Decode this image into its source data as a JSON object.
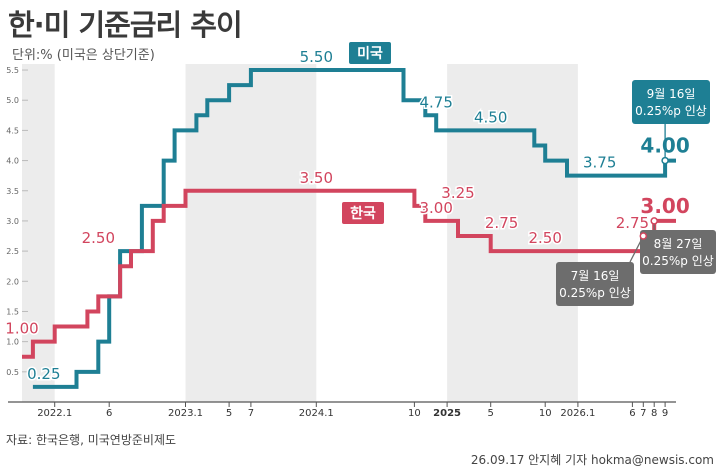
{
  "title": "한·미 기준금리 추이",
  "unit_label": "단위:% (미국은 상단기준)",
  "source": "자료: 한국은행, 미국연방준비제도",
  "credit": "26.09.17 안지혜 기자 hokma@newsis.com",
  "colors": {
    "us": "#1e7f94",
    "kr": "#d2455e",
    "band": "#ececec",
    "callout": "#6d6d6d"
  },
  "chart_data": {
    "type": "line",
    "step": true,
    "title": "한·미 기준금리 추이",
    "xlabel": "",
    "ylabel": "",
    "ylim": [
      0,
      5.6
    ],
    "yticks": [
      "0.5",
      "1.0",
      "1.5",
      "2.0",
      "2.5",
      "3.0",
      "3.5",
      "4.0",
      "4.5",
      "5.0",
      "5.5"
    ],
    "x_range": [
      "2021-10",
      "2026-10"
    ],
    "xticks": [
      {
        "date": "2022-01",
        "label": "2022.1"
      },
      {
        "date": "2022-06",
        "label": "6"
      },
      {
        "date": "2023-01",
        "label": "2023.1"
      },
      {
        "date": "2023-05",
        "label": "5"
      },
      {
        "date": "2023-07",
        "label": "7"
      },
      {
        "date": "2024-01",
        "label": "2024.1"
      },
      {
        "date": "2024-10",
        "label": "10"
      },
      {
        "date": "2025-01",
        "label": "2025"
      },
      {
        "date": "2025-05",
        "label": "5"
      },
      {
        "date": "2025-10",
        "label": "10"
      },
      {
        "date": "2026-01",
        "label": "2026.1"
      },
      {
        "date": "2026-06",
        "label": "6"
      },
      {
        "date": "2026-07",
        "label": "7"
      },
      {
        "date": "2026-08",
        "label": "8"
      },
      {
        "date": "2026-09",
        "label": "9"
      }
    ],
    "series": [
      {
        "name": "미국",
        "points": [
          [
            "2021-11",
            0.25
          ],
          [
            "2022-03",
            0.5
          ],
          [
            "2022-05",
            1.0
          ],
          [
            "2022-06",
            1.75
          ],
          [
            "2022-07",
            2.5
          ],
          [
            "2022-09",
            3.25
          ],
          [
            "2022-11",
            4.0
          ],
          [
            "2022-12",
            4.5
          ],
          [
            "2023-02",
            4.75
          ],
          [
            "2023-03",
            5.0
          ],
          [
            "2023-05",
            5.25
          ],
          [
            "2023-07",
            5.5
          ],
          [
            "2024-09",
            5.0
          ],
          [
            "2024-11",
            4.75
          ],
          [
            "2024-12",
            4.5
          ],
          [
            "2025-09",
            4.25
          ],
          [
            "2025-10",
            4.0
          ],
          [
            "2025-12",
            3.75
          ],
          [
            "2026-09",
            4.0
          ]
        ],
        "end": "2026-10"
      },
      {
        "name": "한국",
        "points": [
          [
            "2021-10",
            0.75
          ],
          [
            "2021-11",
            1.0
          ],
          [
            "2022-01",
            1.25
          ],
          [
            "2022-04",
            1.5
          ],
          [
            "2022-05",
            1.75
          ],
          [
            "2022-07",
            2.25
          ],
          [
            "2022-08",
            2.5
          ],
          [
            "2022-10",
            3.0
          ],
          [
            "2022-11",
            3.25
          ],
          [
            "2023-01",
            3.5
          ],
          [
            "2024-10",
            3.25
          ],
          [
            "2024-11",
            3.0
          ],
          [
            "2025-02",
            2.75
          ],
          [
            "2025-05",
            2.5
          ],
          [
            "2026-07",
            2.75
          ],
          [
            "2026-08",
            3.0
          ]
        ],
        "end": "2026-10"
      }
    ],
    "value_labels": [
      {
        "series": "미국",
        "text": "0.25",
        "date": "2021-12",
        "value": 0.25
      },
      {
        "series": "미국",
        "text": "5.50",
        "date": "2024-01",
        "value": 5.5
      },
      {
        "series": "미국",
        "text": "4.75",
        "date": "2024-12",
        "value": 4.75
      },
      {
        "series": "미국",
        "text": "4.50",
        "date": "2025-05",
        "value": 4.5
      },
      {
        "series": "미국",
        "text": "3.75",
        "date": "2026-03",
        "value": 3.75
      },
      {
        "series": "미국",
        "text": "4.00",
        "date": "2026-09",
        "value": 4.0,
        "bold": true
      },
      {
        "series": "한국",
        "text": "1.00",
        "date": "2021-10",
        "value": 1.0
      },
      {
        "series": "한국",
        "text": "2.50",
        "date": "2022-05",
        "value": 2.5
      },
      {
        "series": "한국",
        "text": "3.50",
        "date": "2024-01",
        "value": 3.5
      },
      {
        "series": "한국",
        "text": "3.25",
        "date": "2025-02",
        "value": 3.25
      },
      {
        "series": "한국",
        "text": "3.00",
        "date": "2024-12",
        "value": 3.0
      },
      {
        "series": "한국",
        "text": "2.75",
        "date": "2025-06",
        "value": 2.75
      },
      {
        "series": "한국",
        "text": "2.50",
        "date": "2025-10",
        "value": 2.5
      },
      {
        "series": "한국",
        "text": "2.75",
        "date": "2026-06",
        "value": 2.75
      },
      {
        "series": "한국",
        "text": "3.00",
        "date": "2026-09",
        "value": 3.0,
        "bold": true
      }
    ],
    "legend": [
      {
        "series": "미국",
        "text": "미국"
      },
      {
        "series": "한국",
        "text": "한국"
      }
    ],
    "callouts": [
      {
        "series": "미국",
        "lines": [
          "9월 16일",
          "0.25%p 인상"
        ],
        "date": "2026-09",
        "value": 4.0
      },
      {
        "series": "한국",
        "lines": [
          "8월 27일",
          "0.25%p 인상"
        ],
        "date": "2026-08",
        "value": 3.0
      },
      {
        "series": "한국",
        "lines": [
          "7월 16일",
          "0.25%p 인상"
        ],
        "date": "2026-07",
        "value": 2.75
      }
    ]
  }
}
